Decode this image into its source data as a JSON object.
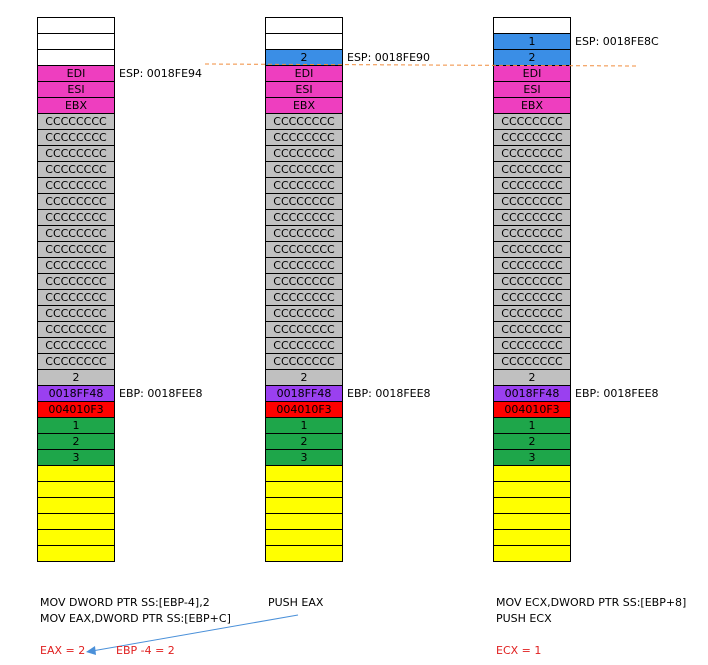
{
  "colors": {
    "white": "#ffffff",
    "blue": "#3a8ee6",
    "magenta": "#ee3ebf",
    "gray": "#c0c0c0",
    "purple": "#9a40f0",
    "red": "#ff0000",
    "green": "#1ea64a",
    "yellow": "#ffff00",
    "dash": "#f08c3c",
    "arrow": "#4a90d9",
    "result_text": "#e02020"
  },
  "stacks": [
    {
      "cells": [
        {
          "text": "",
          "color": "white"
        },
        {
          "text": "",
          "color": "white"
        },
        {
          "text": "",
          "color": "white"
        },
        {
          "text": "EDI",
          "color": "magenta"
        },
        {
          "text": "ESI",
          "color": "magenta"
        },
        {
          "text": "EBX",
          "color": "magenta"
        },
        {
          "text": "CCCCCCCC",
          "color": "gray"
        },
        {
          "text": "CCCCCCCC",
          "color": "gray"
        },
        {
          "text": "CCCCCCCC",
          "color": "gray"
        },
        {
          "text": "CCCCCCCC",
          "color": "gray"
        },
        {
          "text": "CCCCCCCC",
          "color": "gray"
        },
        {
          "text": "CCCCCCCC",
          "color": "gray"
        },
        {
          "text": "CCCCCCCC",
          "color": "gray"
        },
        {
          "text": "CCCCCCCC",
          "color": "gray"
        },
        {
          "text": "CCCCCCCC",
          "color": "gray"
        },
        {
          "text": "CCCCCCCC",
          "color": "gray"
        },
        {
          "text": "CCCCCCCC",
          "color": "gray"
        },
        {
          "text": "CCCCCCCC",
          "color": "gray"
        },
        {
          "text": "CCCCCCCC",
          "color": "gray"
        },
        {
          "text": "CCCCCCCC",
          "color": "gray"
        },
        {
          "text": "CCCCCCCC",
          "color": "gray"
        },
        {
          "text": "CCCCCCCC",
          "color": "gray"
        },
        {
          "text": "2",
          "color": "gray"
        },
        {
          "text": "0018FF48",
          "color": "purple"
        },
        {
          "text": "004010F3",
          "color": "red"
        },
        {
          "text": "1",
          "color": "green"
        },
        {
          "text": "2",
          "color": "green"
        },
        {
          "text": "3",
          "color": "green"
        },
        {
          "text": "",
          "color": "yellow"
        },
        {
          "text": "",
          "color": "yellow"
        },
        {
          "text": "",
          "color": "yellow"
        },
        {
          "text": "",
          "color": "yellow"
        },
        {
          "text": "",
          "color": "yellow"
        },
        {
          "text": "",
          "color": "yellow"
        }
      ],
      "labels": [
        {
          "cell": 3,
          "text": "ESP:  0018FE94"
        },
        {
          "cell": 23,
          "text": "EBP:  0018FEE8"
        }
      ]
    },
    {
      "cells": [
        {
          "text": "",
          "color": "white"
        },
        {
          "text": "",
          "color": "white"
        },
        {
          "text": "2",
          "color": "blue"
        },
        {
          "text": "EDI",
          "color": "magenta"
        },
        {
          "text": "ESI",
          "color": "magenta"
        },
        {
          "text": "EBX",
          "color": "magenta"
        },
        {
          "text": "CCCCCCCC",
          "color": "gray"
        },
        {
          "text": "CCCCCCCC",
          "color": "gray"
        },
        {
          "text": "CCCCCCCC",
          "color": "gray"
        },
        {
          "text": "CCCCCCCC",
          "color": "gray"
        },
        {
          "text": "CCCCCCCC",
          "color": "gray"
        },
        {
          "text": "CCCCCCCC",
          "color": "gray"
        },
        {
          "text": "CCCCCCCC",
          "color": "gray"
        },
        {
          "text": "CCCCCCCC",
          "color": "gray"
        },
        {
          "text": "CCCCCCCC",
          "color": "gray"
        },
        {
          "text": "CCCCCCCC",
          "color": "gray"
        },
        {
          "text": "CCCCCCCC",
          "color": "gray"
        },
        {
          "text": "CCCCCCCC",
          "color": "gray"
        },
        {
          "text": "CCCCCCCC",
          "color": "gray"
        },
        {
          "text": "CCCCCCCC",
          "color": "gray"
        },
        {
          "text": "CCCCCCCC",
          "color": "gray"
        },
        {
          "text": "CCCCCCCC",
          "color": "gray"
        },
        {
          "text": "2",
          "color": "gray"
        },
        {
          "text": "0018FF48",
          "color": "purple"
        },
        {
          "text": "004010F3",
          "color": "red"
        },
        {
          "text": "1",
          "color": "green"
        },
        {
          "text": "2",
          "color": "green"
        },
        {
          "text": "3",
          "color": "green"
        },
        {
          "text": "",
          "color": "yellow"
        },
        {
          "text": "",
          "color": "yellow"
        },
        {
          "text": "",
          "color": "yellow"
        },
        {
          "text": "",
          "color": "yellow"
        },
        {
          "text": "",
          "color": "yellow"
        },
        {
          "text": "",
          "color": "yellow"
        }
      ],
      "labels": [
        {
          "cell": 2,
          "text": "ESP:  0018FE90"
        },
        {
          "cell": 23,
          "text": "EBP:  0018FEE8"
        }
      ]
    },
    {
      "cells": [
        {
          "text": "",
          "color": "white"
        },
        {
          "text": "1",
          "color": "blue"
        },
        {
          "text": "2",
          "color": "blue"
        },
        {
          "text": "EDI",
          "color": "magenta"
        },
        {
          "text": "ESI",
          "color": "magenta"
        },
        {
          "text": "EBX",
          "color": "magenta"
        },
        {
          "text": "CCCCCCCC",
          "color": "gray"
        },
        {
          "text": "CCCCCCCC",
          "color": "gray"
        },
        {
          "text": "CCCCCCCC",
          "color": "gray"
        },
        {
          "text": "CCCCCCCC",
          "color": "gray"
        },
        {
          "text": "CCCCCCCC",
          "color": "gray"
        },
        {
          "text": "CCCCCCCC",
          "color": "gray"
        },
        {
          "text": "CCCCCCCC",
          "color": "gray"
        },
        {
          "text": "CCCCCCCC",
          "color": "gray"
        },
        {
          "text": "CCCCCCCC",
          "color": "gray"
        },
        {
          "text": "CCCCCCCC",
          "color": "gray"
        },
        {
          "text": "CCCCCCCC",
          "color": "gray"
        },
        {
          "text": "CCCCCCCC",
          "color": "gray"
        },
        {
          "text": "CCCCCCCC",
          "color": "gray"
        },
        {
          "text": "CCCCCCCC",
          "color": "gray"
        },
        {
          "text": "CCCCCCCC",
          "color": "gray"
        },
        {
          "text": "CCCCCCCC",
          "color": "gray"
        },
        {
          "text": "2",
          "color": "gray"
        },
        {
          "text": "0018FF48",
          "color": "purple"
        },
        {
          "text": "004010F3",
          "color": "red"
        },
        {
          "text": "1",
          "color": "green"
        },
        {
          "text": "2",
          "color": "green"
        },
        {
          "text": "3",
          "color": "green"
        },
        {
          "text": "",
          "color": "yellow"
        },
        {
          "text": "",
          "color": "yellow"
        },
        {
          "text": "",
          "color": "yellow"
        },
        {
          "text": "",
          "color": "yellow"
        },
        {
          "text": "",
          "color": "yellow"
        },
        {
          "text": "",
          "color": "yellow"
        }
      ],
      "labels": [
        {
          "cell": 1,
          "text": "ESP:  0018FE8C"
        },
        {
          "cell": 23,
          "text": "EBP:  0018FEE8"
        }
      ]
    }
  ],
  "code": {
    "col1_line1": "MOV DWORD PTR SS:[EBP-4],2",
    "col1_line2": "MOV EAX,DWORD PTR SS:[EBP+C]",
    "col2_line1": "PUSH EAX",
    "col3_line1": "MOV ECX,DWORD PTR SS:[EBP+8]",
    "col3_line2": "PUSH ECX"
  },
  "results": {
    "eax": "EAX = 2",
    "ebp": "EBP -4 = 2",
    "ecx": "ECX = 1"
  }
}
